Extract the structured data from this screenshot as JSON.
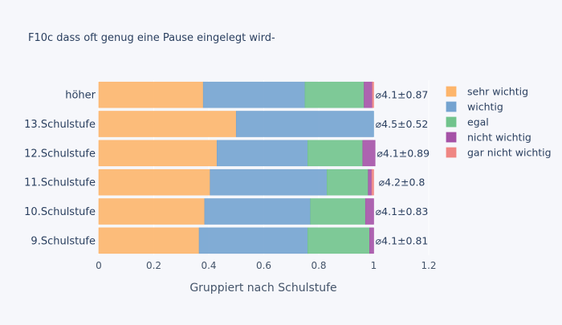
{
  "chart_data": {
    "type": "bar",
    "orientation": "horizontal",
    "stacked": true,
    "title": "F10c dass oft genug eine Pause eingelegt wird-",
    "xlabel": "Gruppiert nach Schulstufe",
    "ylabel": "",
    "xlim": [
      0,
      1.2
    ],
    "xticks": [
      0,
      0.2,
      0.4,
      0.6,
      0.8,
      1,
      1.2
    ],
    "xtick_labels": [
      "0",
      "0.2",
      "0.4",
      "0.6",
      "0.8",
      "1",
      "1.2"
    ],
    "categories": [
      "höher",
      "13.Schulstufe",
      "12.Schulstufe",
      "11.Schulstufe",
      "10.Schulstufe",
      "9.Schulstufe"
    ],
    "series": [
      {
        "name": "sehr wichtig",
        "color": "#fdb56b",
        "values": [
          0.38,
          0.5,
          0.43,
          0.405,
          0.385,
          0.365
        ]
      },
      {
        "name": "wichtig",
        "color": "#74a3d0",
        "values": [
          0.37,
          0.5,
          0.33,
          0.425,
          0.385,
          0.395
        ]
      },
      {
        "name": "egal",
        "color": "#71c38c",
        "values": [
          0.215,
          0,
          0.2,
          0.15,
          0.2,
          0.225
        ]
      },
      {
        "name": "nicht wichtig",
        "color": "#a552a7",
        "values": [
          0.03,
          0,
          0.045,
          0.013,
          0.03,
          0.015
        ]
      },
      {
        "name": "gar nicht wichtig",
        "color": "#ef8683",
        "values": [
          0.005,
          0,
          0,
          0.007,
          0,
          0
        ]
      }
    ],
    "annotations": [
      "⌀4.1±0.87",
      "⌀4.5±0.52",
      "⌀4.1±0.89",
      "⌀4.2±0.8",
      "⌀4.1±0.83",
      "⌀4.1±0.81"
    ],
    "legend_position": "right",
    "grid": {
      "x": true,
      "y": false
    }
  }
}
